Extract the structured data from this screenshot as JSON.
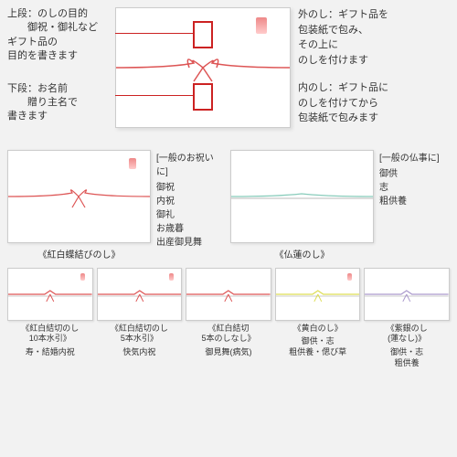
{
  "top": {
    "upper_title": "上段：のしの目的",
    "upper_desc": "御祝・御礼など\nギフト品の\n目的を書きます",
    "lower_title": "下段：お名前",
    "lower_desc": "贈り主名で\n書きます",
    "outer_title": "外のし：",
    "outer_desc": "ギフト品を\n包装紙で包み、\nその上に\nのしを付けます",
    "inner_title": "内のし：",
    "inner_desc": "ギフト品に\nのしを付けてから\n包装紙で包みます"
  },
  "middle": {
    "left_card": "《紅白蝶結びのし》",
    "left_title": "[一般のお祝いに]",
    "left_items": "御祝\n内祝\n御礼\nお歳暮\n出産御見舞",
    "right_card": "《仏蓮のし》",
    "right_title": "[一般の仏事に]",
    "right_items": "御供\n志\n粗供養"
  },
  "bottom": {
    "cards": [
      {
        "name": "《紅白結切のし\n10本水引》",
        "sub": "寿・結婚内祝",
        "color": "#d55"
      },
      {
        "name": "《紅白結切のし\n5本水引》",
        "sub": "快気内祝",
        "color": "#d55"
      },
      {
        "name": "《紅白結切\n5本のしなし》",
        "sub": "御見舞(病気)",
        "color": "#d55"
      },
      {
        "name": "《黄白のし》",
        "sub": "御供・志\n粗供養・偲び草",
        "color": "#dd5"
      },
      {
        "name": "《紫銀のし\n(蓮なし)》",
        "sub": "御供・志\n粗供養",
        "color": "#a9c"
      }
    ]
  }
}
